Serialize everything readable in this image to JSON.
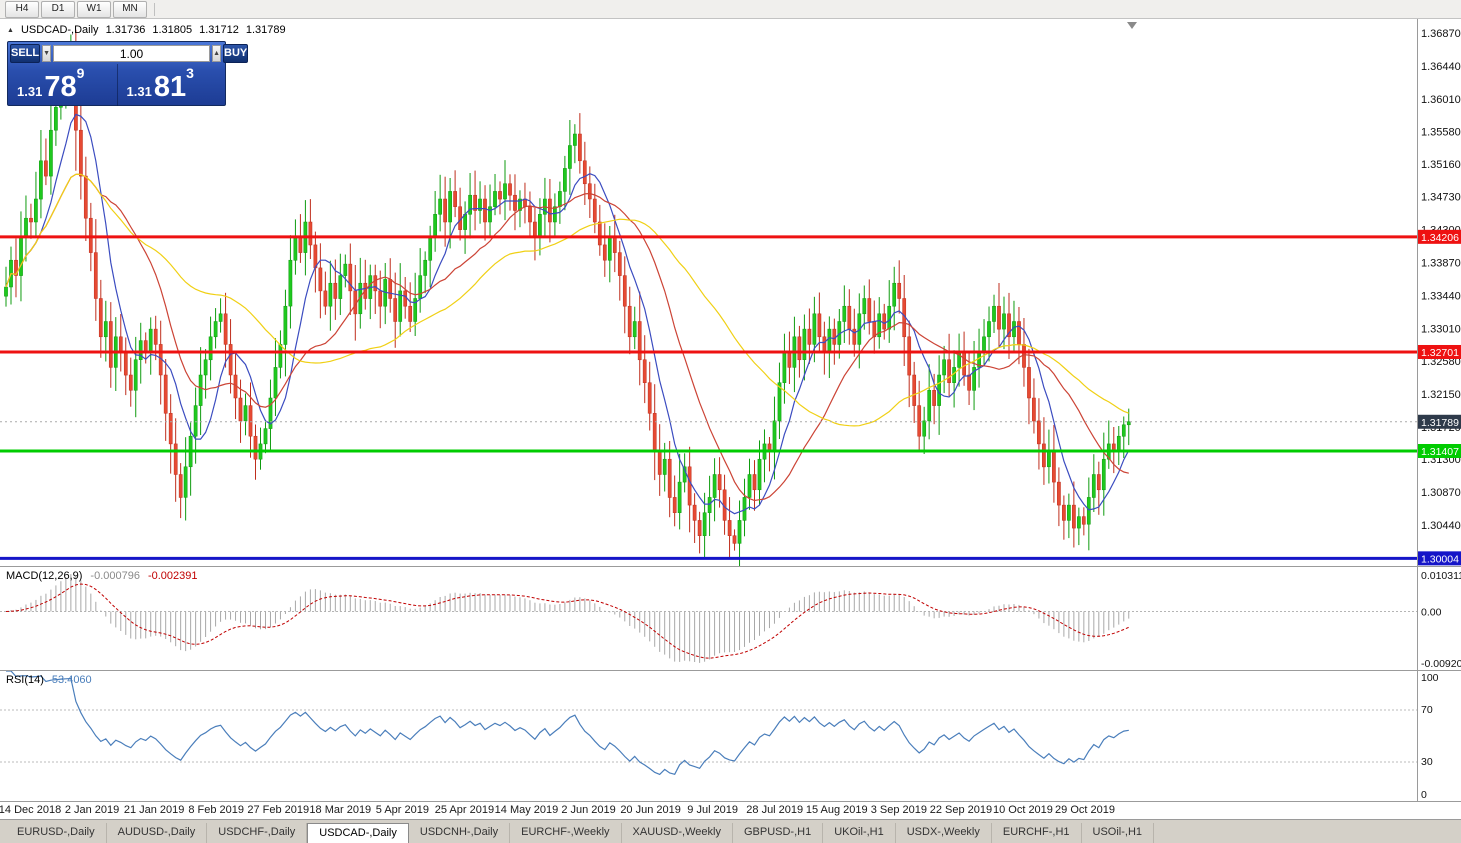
{
  "toolbar": {
    "timeframes": [
      "H4",
      "D1",
      "W1",
      "MN"
    ]
  },
  "ohlc_header": {
    "collapse_icon": "▲",
    "symbol": "USDCAD-,Daily",
    "open": "1.31736",
    "high": "1.31805",
    "low": "1.31712",
    "close": "1.31789"
  },
  "trade_panel": {
    "sell_label": "SELL",
    "buy_label": "BUY",
    "volume": "1.00",
    "spin_down_icon": "▼",
    "spin_up_icon": "▲",
    "sell_price": {
      "prefix": "1.31",
      "big": "78",
      "sup": "9"
    },
    "buy_price": {
      "prefix": "1.31",
      "big": "81",
      "sup": "3"
    }
  },
  "indicator_panels": {
    "macd": {
      "title": "MACD(12,26,9)",
      "value1": "-0.000796",
      "value2": "-0.002391",
      "scale": [
        "0.0103111",
        "0.00",
        "-0.0092031"
      ]
    },
    "rsi": {
      "title": "RSI(14)",
      "value": "53.4060",
      "scale": [
        "100",
        "70",
        "30",
        "0"
      ]
    }
  },
  "chart_data": {
    "type": "candlestick",
    "title": "USDCAD-,Daily",
    "last_bar": {
      "open": 1.31736,
      "high": 1.31805,
      "low": 1.31712,
      "close": 1.31789
    },
    "price_axis": {
      "max": 1.37053,
      "min": 1.29904,
      "ticks": [
        1.3687,
        1.3644,
        1.3601,
        1.3558,
        1.3516,
        1.3473,
        1.343,
        1.3387,
        1.3344,
        1.3301,
        1.3258,
        1.3215,
        1.3172,
        1.313,
        1.3087,
        1.3044
      ]
    },
    "hlines": [
      {
        "price": 1.34206,
        "label": "1.34206",
        "color": "#ee1111"
      },
      {
        "price": 1.32701,
        "label": "1.32701",
        "color": "#ee1111"
      },
      {
        "price": 1.31407,
        "label": "1.31407",
        "color": "#00cc00"
      },
      {
        "price": 1.30004,
        "label": "1.30004",
        "color": "#1515c8"
      }
    ],
    "current_price": {
      "price": 1.31789,
      "label": "1.31789",
      "box_color": "#2e3a4a"
    },
    "candle_colors": {
      "up": "#1fc81f",
      "up_stroke": "#0f9b0f",
      "down": "#e64a33",
      "down_stroke": "#bf2e1d"
    },
    "moving_averages": [
      {
        "period": 8,
        "color": "#3b4cc0"
      },
      {
        "period": 20,
        "color": "#cc4436"
      },
      {
        "period": 45,
        "color": "#f0d015"
      }
    ],
    "macd": {
      "fast": 12,
      "slow": 26,
      "signal": 9,
      "hist_color": "#a8a8a8",
      "signal_color": "#c00000"
    },
    "rsi": {
      "period": 14,
      "levels": [
        70,
        30
      ],
      "color": "#4a7ebb"
    },
    "x_labels": [
      "14 Dec 2018",
      "2 Jan 2019",
      "21 Jan 2019",
      "8 Feb 2019",
      "27 Feb 2019",
      "18 Mar 2019",
      "5 Apr 2019",
      "25 Apr 2019",
      "14 May 2019",
      "2 Jun 2019",
      "20 Jun 2019",
      "9 Jul 2019",
      "28 Jul 2019",
      "15 Aug 2019",
      "3 Sep 2019",
      "22 Sep 2019",
      "10 Oct 2019",
      "29 Oct 2019"
    ],
    "closes": [
      1.3355,
      1.339,
      1.337,
      1.342,
      1.3445,
      1.344,
      1.347,
      1.352,
      1.35,
      1.356,
      1.359,
      1.362,
      1.364,
      1.3655,
      1.356,
      1.35,
      1.3445,
      1.34,
      1.334,
      1.329,
      1.331,
      1.325,
      1.329,
      1.327,
      1.324,
      1.322,
      1.326,
      1.3285,
      1.327,
      1.33,
      1.328,
      1.324,
      1.319,
      1.315,
      1.311,
      1.308,
      1.312,
      1.316,
      1.32,
      1.324,
      1.326,
      1.329,
      1.331,
      1.332,
      1.328,
      1.324,
      1.321,
      1.318,
      1.32,
      1.316,
      1.313,
      1.315,
      1.317,
      1.321,
      1.325,
      1.328,
      1.333,
      1.339,
      1.342,
      1.34,
      1.344,
      1.341,
      1.338,
      1.335,
      1.333,
      1.336,
      1.334,
      1.337,
      1.3385,
      1.335,
      1.332,
      1.336,
      1.334,
      1.337,
      1.335,
      1.333,
      1.3365,
      1.334,
      1.331,
      1.335,
      1.333,
      1.331,
      1.334,
      1.337,
      1.339,
      1.342,
      1.345,
      1.347,
      1.344,
      1.348,
      1.346,
      1.343,
      1.345,
      1.3475,
      1.3455,
      1.347,
      1.344,
      1.346,
      1.348,
      1.347,
      1.349,
      1.3475,
      1.3455,
      1.347,
      1.346,
      1.344,
      1.342,
      1.345,
      1.347,
      1.344,
      1.346,
      1.348,
      1.351,
      1.354,
      1.3555,
      1.352,
      1.349,
      1.347,
      1.344,
      1.341,
      1.339,
      1.342,
      1.34,
      1.337,
      1.333,
      1.329,
      1.331,
      1.326,
      1.323,
      1.319,
      1.314,
      1.311,
      1.313,
      1.308,
      1.306,
      1.31,
      1.312,
      1.307,
      1.305,
      1.303,
      1.306,
      1.308,
      1.311,
      1.309,
      1.305,
      1.303,
      1.302,
      1.305,
      1.308,
      1.311,
      1.309,
      1.313,
      1.315,
      1.314,
      1.318,
      1.323,
      1.327,
      1.325,
      1.329,
      1.326,
      1.33,
      1.328,
      1.332,
      1.329,
      1.327,
      1.33,
      1.328,
      1.331,
      1.333,
      1.33,
      1.328,
      1.332,
      1.334,
      1.331,
      1.329,
      1.332,
      1.33,
      1.333,
      1.336,
      1.334,
      1.329,
      1.324,
      1.32,
      1.316,
      1.318,
      1.322,
      1.32,
      1.324,
      1.326,
      1.323,
      1.325,
      1.327,
      1.324,
      1.322,
      1.325,
      1.327,
      1.329,
      1.331,
      1.333,
      1.33,
      1.332,
      1.329,
      1.331,
      1.328,
      1.325,
      1.321,
      1.318,
      1.315,
      1.312,
      1.314,
      1.31,
      1.307,
      1.305,
      1.307,
      1.304,
      1.3055,
      1.3045,
      1.308,
      1.311,
      1.309,
      1.313,
      1.315,
      1.314,
      1.316,
      1.3175,
      1.3179
    ]
  },
  "tabs": {
    "active_index": 3,
    "items": [
      "EURUSD-,Daily",
      "AUDUSD-,Daily",
      "USDCHF-,Daily",
      "USDCAD-,Daily",
      "USDCNH-,Daily",
      "EURCHF-,Weekly",
      "XAUUSD-,Weekly",
      "GBPUSD-,H1",
      "UKOil-,H1",
      "USDX-,Weekly",
      "EURCHF-,H1",
      "USOil-,H1"
    ]
  }
}
